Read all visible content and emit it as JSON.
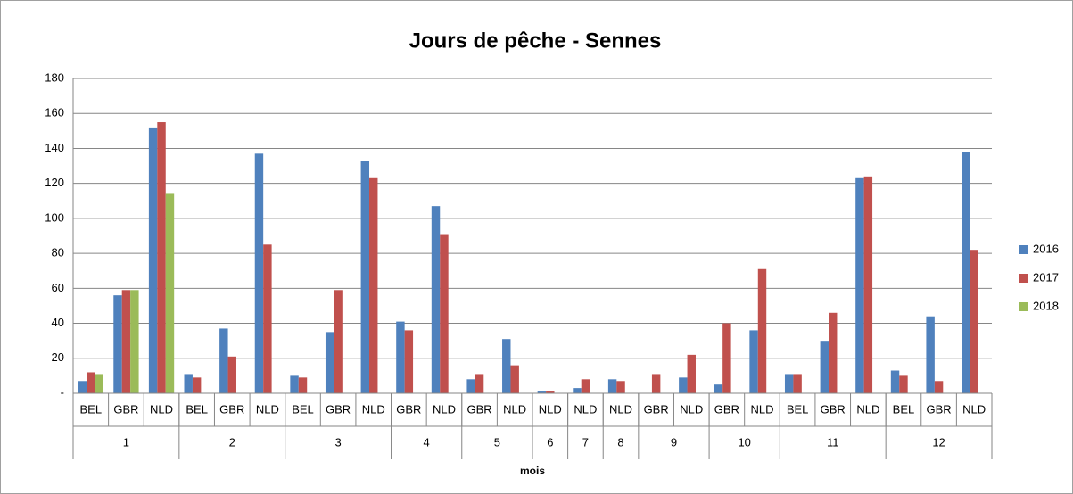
{
  "chart_data": {
    "type": "bar",
    "title": "Jours de pêche - Sennes",
    "x_label": "mois",
    "groups": [
      {
        "name": "1",
        "categories": [
          "BEL",
          "GBR",
          "NLD"
        ]
      },
      {
        "name": "2",
        "categories": [
          "BEL",
          "GBR",
          "NLD"
        ]
      },
      {
        "name": "3",
        "categories": [
          "BEL",
          "GBR",
          "NLD"
        ]
      },
      {
        "name": "4",
        "categories": [
          "GBR",
          "NLD"
        ]
      },
      {
        "name": "5",
        "categories": [
          "GBR",
          "NLD"
        ]
      },
      {
        "name": "6",
        "categories": [
          "NLD"
        ]
      },
      {
        "name": "7",
        "categories": [
          "NLD"
        ]
      },
      {
        "name": "8",
        "categories": [
          "NLD"
        ]
      },
      {
        "name": "9",
        "categories": [
          "GBR",
          "NLD"
        ]
      },
      {
        "name": "10",
        "categories": [
          "GBR",
          "NLD"
        ]
      },
      {
        "name": "11",
        "categories": [
          "BEL",
          "GBR",
          "NLD"
        ]
      },
      {
        "name": "12",
        "categories": [
          "BEL",
          "GBR",
          "NLD"
        ]
      }
    ],
    "series": [
      {
        "name": "2016",
        "color": "#4f81bd",
        "values": [
          7,
          56,
          152,
          11,
          37,
          137,
          10,
          35,
          133,
          41,
          107,
          8,
          31,
          1,
          3,
          8,
          null,
          9,
          5,
          36,
          11,
          30,
          123,
          13,
          44,
          138
        ]
      },
      {
        "name": "2017",
        "color": "#c0504d",
        "values": [
          12,
          59,
          155,
          9,
          21,
          85,
          9,
          59,
          123,
          36,
          91,
          11,
          16,
          1,
          8,
          7,
          11,
          22,
          40,
          71,
          11,
          46,
          124,
          10,
          7,
          82
        ]
      },
      {
        "name": "2018",
        "color": "#9bbb59",
        "values": [
          11,
          59,
          114,
          null,
          null,
          null,
          null,
          null,
          null,
          null,
          null,
          null,
          null,
          null,
          null,
          null,
          null,
          null,
          null,
          null,
          null,
          null,
          null,
          null,
          null,
          null
        ]
      }
    ],
    "ylim": [
      0,
      180
    ],
    "yticks": [
      {
        "value": 0,
        "label": "-"
      },
      20,
      40,
      60,
      80,
      100,
      120,
      140,
      160,
      180
    ],
    "grid": true,
    "legend": "right"
  }
}
